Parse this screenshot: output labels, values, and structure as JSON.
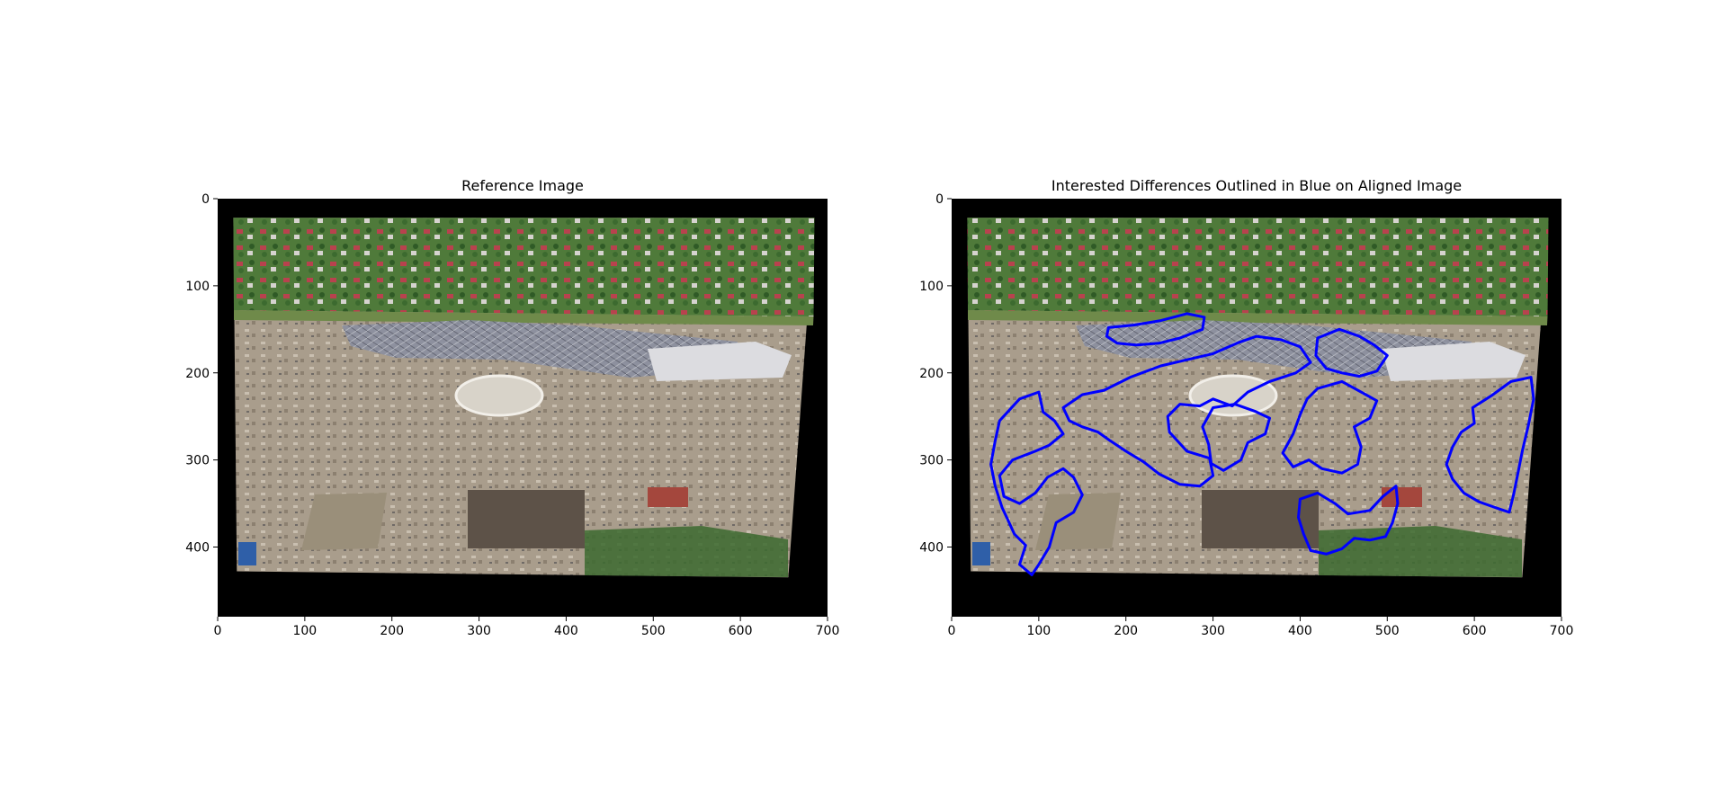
{
  "figure": {
    "background": "#ffffff",
    "left_panel": {
      "title": "Reference Image",
      "axis": {
        "xlim": [
          0,
          700
        ],
        "ylim_inverted": [
          480,
          0
        ],
        "xticks": [
          0,
          100,
          200,
          300,
          400,
          500,
          600,
          700
        ],
        "yticks": [
          0,
          100,
          200,
          300,
          400
        ]
      }
    },
    "right_panel": {
      "title": "Interested Differences Outlined in Blue on Aligned Image",
      "outline_color": "#0000ff",
      "axis": {
        "xlim": [
          0,
          700
        ],
        "ylim_inverted": [
          480,
          0
        ],
        "xticks": [
          0,
          100,
          200,
          300,
          400,
          500,
          600,
          700
        ],
        "yticks": [
          0,
          100,
          200,
          300,
          400
        ]
      }
    },
    "photo_palette": {
      "vegetation": "#4f7a3a",
      "dark_vegetation": "#2f5a26",
      "roof_red": "#b8424e",
      "roof_orange": "#c46a2e",
      "construction_ground": "#a99d8c",
      "steel_structure": "#8a8fa0",
      "white_roof": "#dcdce0",
      "pond_water": "#9a8f7a",
      "frame_black": "#000000"
    }
  },
  "chart_data": [
    {
      "type": "image",
      "title": "Reference Image",
      "xlabel": "",
      "ylabel": "",
      "xlim": [
        0,
        700
      ],
      "ylim": [
        480,
        0
      ],
      "xticks": [
        0,
        100,
        200,
        300,
        400,
        500,
        600,
        700
      ],
      "yticks": [
        0,
        100,
        200,
        300,
        400
      ],
      "image_extent_quad": [
        [
          18,
          22
        ],
        [
          685,
          22
        ],
        [
          655,
          435
        ],
        [
          22,
          428
        ]
      ]
    },
    {
      "type": "image",
      "title": "Interested Differences Outlined in Blue on Aligned Image",
      "xlabel": "",
      "ylabel": "",
      "xlim": [
        0,
        700
      ],
      "ylim": [
        480,
        0
      ],
      "xticks": [
        0,
        100,
        200,
        300,
        400,
        500,
        600,
        700
      ],
      "yticks": [
        0,
        100,
        200,
        300,
        400
      ],
      "image_extent_quad": [
        [
          18,
          22
        ],
        [
          685,
          22
        ],
        [
          655,
          435
        ],
        [
          22,
          428
        ]
      ],
      "outline_color": "#0000ff",
      "outlined_regions": [
        {
          "name": "region-left-lower",
          "points": [
            [
              55,
              255
            ],
            [
              78,
              230
            ],
            [
              100,
              222
            ],
            [
              105,
              245
            ],
            [
              118,
              255
            ],
            [
              128,
              270
            ],
            [
              112,
              283
            ],
            [
              96,
              290
            ],
            [
              70,
              300
            ],
            [
              55,
              318
            ],
            [
              60,
              342
            ],
            [
              78,
              350
            ],
            [
              96,
              338
            ],
            [
              110,
              320
            ],
            [
              128,
              310
            ],
            [
              140,
              320
            ],
            [
              150,
              340
            ],
            [
              140,
              360
            ],
            [
              120,
              372
            ],
            [
              112,
              400
            ],
            [
              100,
              420
            ],
            [
              92,
              432
            ],
            [
              78,
              420
            ],
            [
              85,
              398
            ],
            [
              72,
              385
            ],
            [
              65,
              370
            ],
            [
              58,
              355
            ],
            [
              50,
              330
            ],
            [
              45,
              305
            ],
            [
              50,
              278
            ]
          ]
        },
        {
          "name": "region-central-large",
          "points": [
            [
              128,
              240
            ],
            [
              150,
              225
            ],
            [
              175,
              220
            ],
            [
              205,
              205
            ],
            [
              240,
              192
            ],
            [
              270,
              185
            ],
            [
              300,
              178
            ],
            [
              330,
              165
            ],
            [
              350,
              158
            ],
            [
              378,
              162
            ],
            [
              400,
              170
            ],
            [
              412,
              188
            ],
            [
              395,
              200
            ],
            [
              365,
              210
            ],
            [
              340,
              222
            ],
            [
              322,
              238
            ],
            [
              300,
              230
            ],
            [
              285,
              238
            ],
            [
              262,
              236
            ],
            [
              248,
              250
            ],
            [
              250,
              268
            ],
            [
              270,
              290
            ],
            [
              296,
              298
            ],
            [
              300,
              318
            ],
            [
              285,
              330
            ],
            [
              262,
              328
            ],
            [
              238,
              316
            ],
            [
              220,
              302
            ],
            [
              200,
              290
            ],
            [
              182,
              278
            ],
            [
              168,
              268
            ],
            [
              150,
              262
            ],
            [
              135,
              255
            ]
          ]
        },
        {
          "name": "region-top-band",
          "points": [
            [
              180,
              148
            ],
            [
              210,
              145
            ],
            [
              240,
              140
            ],
            [
              270,
              132
            ],
            [
              290,
              136
            ],
            [
              288,
              150
            ],
            [
              262,
              160
            ],
            [
              238,
              166
            ],
            [
              212,
              168
            ],
            [
              190,
              166
            ],
            [
              178,
              158
            ]
          ]
        },
        {
          "name": "region-central-loop",
          "points": [
            [
              300,
              240
            ],
            [
              325,
              236
            ],
            [
              348,
              244
            ],
            [
              365,
              252
            ],
            [
              360,
              270
            ],
            [
              340,
              280
            ],
            [
              332,
              300
            ],
            [
              312,
              312
            ],
            [
              298,
              304
            ],
            [
              295,
              282
            ],
            [
              288,
              262
            ]
          ]
        },
        {
          "name": "region-mid-right",
          "points": [
            [
              420,
              218
            ],
            [
              448,
              210
            ],
            [
              470,
              222
            ],
            [
              488,
              232
            ],
            [
              480,
              252
            ],
            [
              462,
              262
            ],
            [
              470,
              285
            ],
            [
              466,
              305
            ],
            [
              448,
              315
            ],
            [
              425,
              310
            ],
            [
              410,
              300
            ],
            [
              392,
              308
            ],
            [
              380,
              292
            ],
            [
              392,
              270
            ],
            [
              400,
              248
            ],
            [
              408,
              230
            ]
          ]
        },
        {
          "name": "region-upper-right",
          "points": [
            [
              420,
              160
            ],
            [
              445,
              150
            ],
            [
              468,
              158
            ],
            [
              485,
              168
            ],
            [
              500,
              180
            ],
            [
              488,
              198
            ],
            [
              468,
              204
            ],
            [
              448,
              200
            ],
            [
              430,
              195
            ],
            [
              418,
              180
            ]
          ]
        },
        {
          "name": "region-lower-middle",
          "points": [
            [
              400,
              345
            ],
            [
              420,
              338
            ],
            [
              440,
              350
            ],
            [
              455,
              362
            ],
            [
              480,
              358
            ],
            [
              495,
              342
            ],
            [
              510,
              330
            ],
            [
              512,
              350
            ],
            [
              506,
              372
            ],
            [
              498,
              388
            ],
            [
              480,
              392
            ],
            [
              462,
              390
            ],
            [
              448,
              402
            ],
            [
              430,
              408
            ],
            [
              412,
              404
            ],
            [
              404,
              385
            ],
            [
              398,
              366
            ]
          ]
        },
        {
          "name": "region-far-right",
          "points": [
            [
              598,
              240
            ],
            [
              620,
              226
            ],
            [
              642,
              210
            ],
            [
              665,
              205
            ],
            [
              668,
              230
            ],
            [
              662,
              260
            ],
            [
              655,
              290
            ],
            [
              650,
              315
            ],
            [
              645,
              340
            ],
            [
              640,
              360
            ],
            [
              625,
              355
            ],
            [
              605,
              348
            ],
            [
              588,
              338
            ],
            [
              575,
              322
            ],
            [
              568,
              305
            ],
            [
              575,
              285
            ],
            [
              585,
              268
            ],
            [
              600,
              258
            ]
          ]
        }
      ]
    }
  ]
}
